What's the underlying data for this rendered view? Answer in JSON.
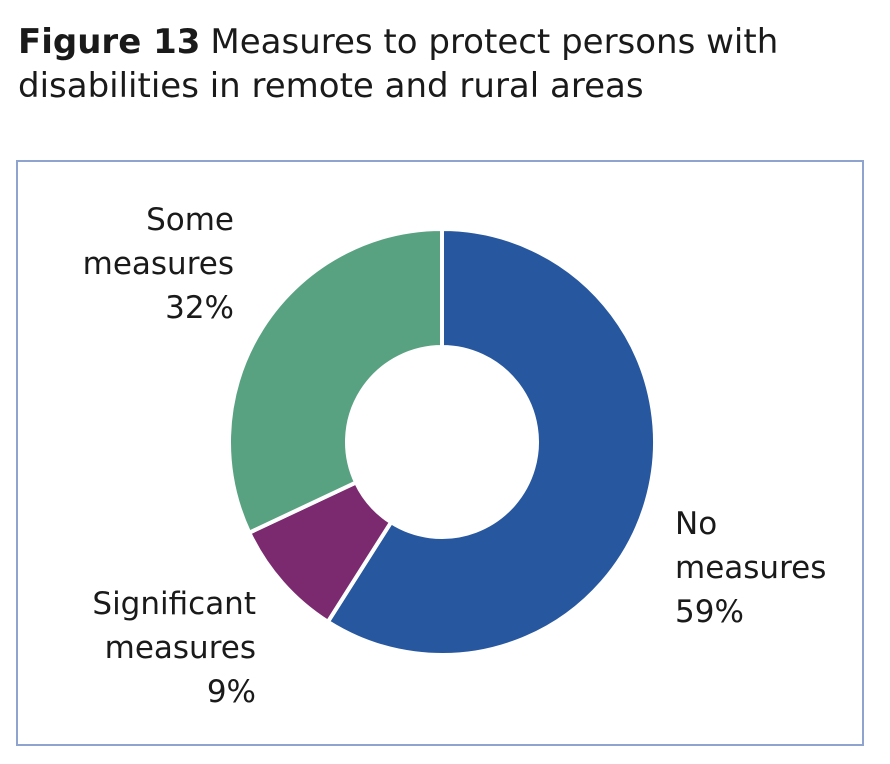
{
  "figure": {
    "number_label": "Figure 13",
    "title": "Measures to protect persons with disabilities in remote and rural areas"
  },
  "chart_data": {
    "type": "pie",
    "variant": "donut",
    "title": "Figure 13  Measures to protect persons with disabilities in remote and rural areas",
    "slices": [
      {
        "label": "No measures",
        "label_lines": [
          "No",
          "measures"
        ],
        "value": 59,
        "value_label": "59%",
        "color": "#27579f"
      },
      {
        "label": "Significant measures",
        "label_lines": [
          "Significant",
          "measures"
        ],
        "value": 9,
        "value_label": "9%",
        "color": "#7b2a70"
      },
      {
        "label": "Some measures",
        "label_lines": [
          "Some",
          "measures"
        ],
        "value": 32,
        "value_label": "32%",
        "color": "#58a281"
      }
    ],
    "start_angle": "12 o'clock",
    "direction": "clockwise",
    "border_color": "#8fa3cf"
  }
}
